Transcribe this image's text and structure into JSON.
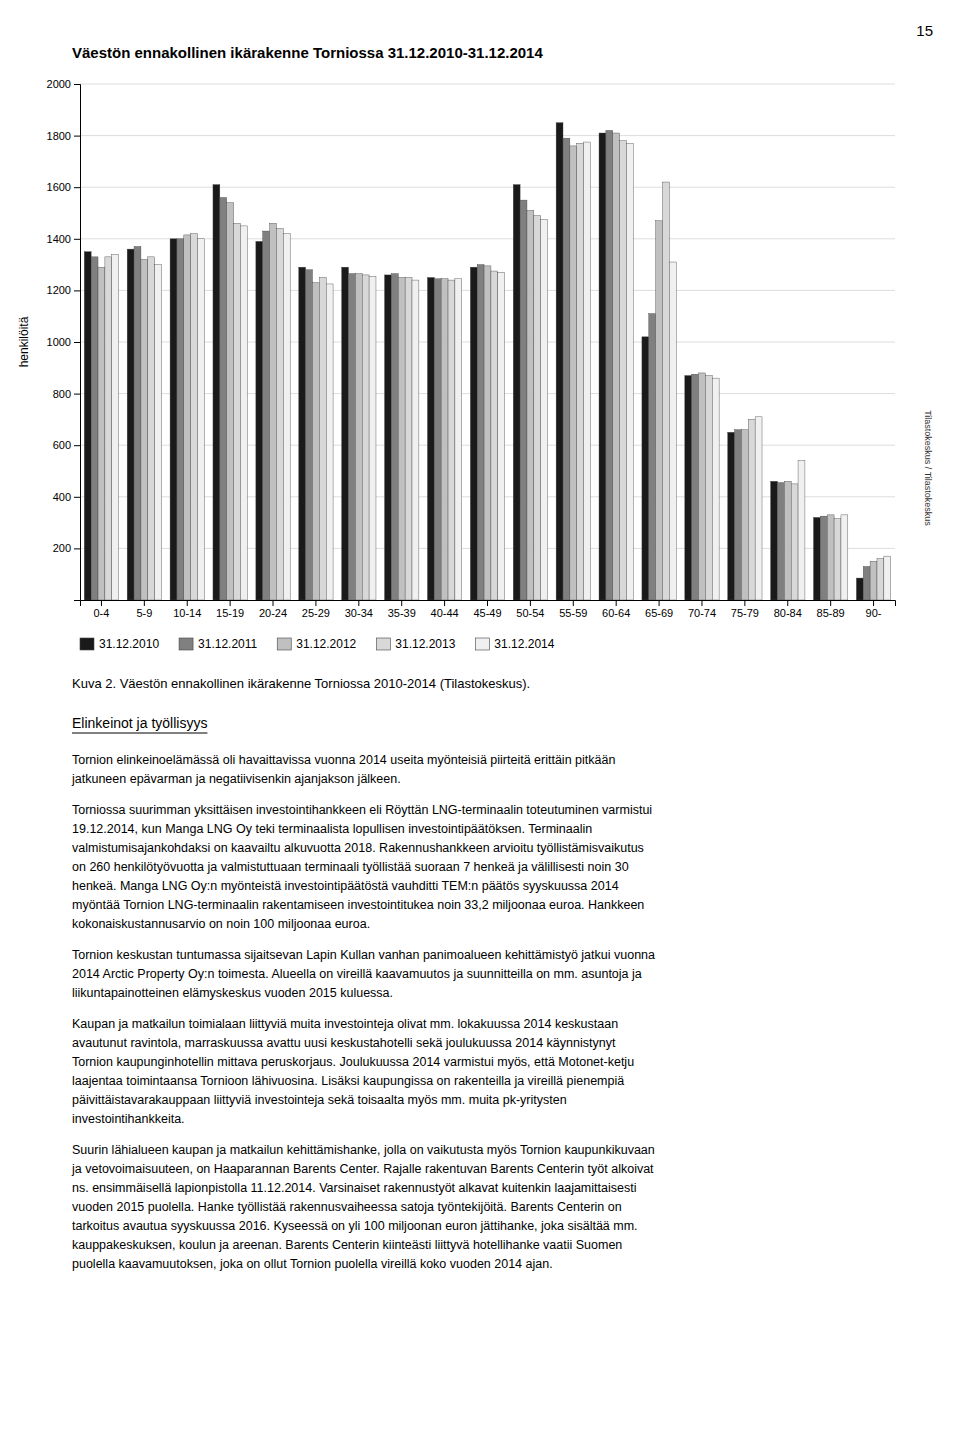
{
  "chart_data": {
    "type": "bar",
    "title": "Väestön ennakollinen ikärakenne Torniossa 31.12.2010-31.12.2014",
    "ylabel": "henkilöitä",
    "categories": [
      "0-4",
      "5-9",
      "10-14",
      "15-19",
      "20-24",
      "25-29",
      "30-34",
      "35-39",
      "40-44",
      "45-49",
      "50-54",
      "55-59",
      "60-64",
      "65-69",
      "70-74",
      "75-79",
      "80-84",
      "85-89",
      "90-"
    ],
    "series": [
      {
        "name": "31.12.2010",
        "color": "#1a1a1a",
        "values": [
          1350,
          1360,
          1400,
          1610,
          1390,
          1290,
          1290,
          1260,
          1250,
          1290,
          1610,
          1850,
          1810,
          1020,
          870,
          650,
          460,
          320,
          85
        ]
      },
      {
        "name": "31.12.2011",
        "color": "#808080",
        "values": [
          1330,
          1370,
          1400,
          1560,
          1430,
          1280,
          1265,
          1265,
          1245,
          1300,
          1550,
          1790,
          1820,
          1110,
          875,
          660,
          455,
          325,
          130
        ]
      },
      {
        "name": "31.12.2012",
        "color": "#c0c0c0",
        "values": [
          1290,
          1320,
          1415,
          1540,
          1460,
          1230,
          1265,
          1250,
          1245,
          1295,
          1510,
          1760,
          1810,
          1470,
          880,
          660,
          460,
          330,
          150
        ]
      },
      {
        "name": "31.12.2013",
        "color": "#d8d8d8",
        "values": [
          1330,
          1330,
          1420,
          1460,
          1440,
          1250,
          1260,
          1250,
          1240,
          1275,
          1490,
          1770,
          1780,
          1620,
          870,
          700,
          450,
          315,
          160
        ]
      },
      {
        "name": "31.12.2014",
        "color": "#f0f0f0",
        "values": [
          1340,
          1300,
          1400,
          1450,
          1420,
          1225,
          1255,
          1240,
          1245,
          1270,
          1475,
          1775,
          1770,
          1310,
          860,
          710,
          540,
          330,
          170
        ]
      }
    ],
    "ylim": [
      0,
      2000
    ],
    "yticks": [
      200,
      400,
      600,
      800,
      1000,
      1200,
      1400,
      1600,
      1800,
      2000
    ],
    "grid": true,
    "legend": "bottom"
  },
  "page_number": "15",
  "watermark": "Tilastokeskus / Tilastokeskus",
  "caption": "Kuva 2. Väestön ennakollinen ikärakenne Torniossa 2010-2014 (Tilastokeskus).",
  "section_heading": "Elinkeinot ja työllisyys",
  "paragraphs": [
    [
      "Tornion elinkeinoelämässä oli havaittavissa vuonna 2014 useita myönteisiä piirteitä erittäin pitkään",
      "jatkuneen epävarman ja negatiivisenkin ajanjakson jälkeen."
    ],
    [
      "Torniossa suurimman yksittäisen investointihankkeen eli Röyttän LNG-terminaalin toteutuminen varmistui",
      "19.12.2014, kun Manga LNG Oy teki terminaalista lopullisen investointipäätöksen. Terminaalin",
      "valmistumisajankohdaksi on kaavailtu alkuvuotta 2018. Rakennushankkeen arvioitu työllistämisvaikutus",
      "on 260 henkilötyövuotta ja valmistuttuaan terminaali työllistää suoraan 7 henkeä ja välillisesti noin 30",
      "henkeä. Manga LNG Oy:n myönteistä investointipäätöstä vauhditti TEM:n päätös syyskuussa 2014",
      "myöntää Tornion LNG-terminaalin rakentamiseen investointitukea noin 33,2 miljoonaa euroa. Hankkeen",
      "kokonaiskustannusarvio on noin 100 miljoonaa euroa."
    ],
    [
      "Tornion keskustan tuntumassa sijaitsevan Lapin Kullan vanhan panimoalueen kehittämistyö jatkui vuonna",
      "2014 Arctic Property Oy:n toimesta. Alueella on vireillä kaavamuutos ja suunnitteilla on mm. asuntoja ja",
      "liikuntapainotteinen elämyskeskus vuoden 2015 kuluessa."
    ],
    [
      "Kaupan ja matkailun toimialaan liittyviä muita investointeja olivat mm. lokakuussa 2014 keskustaan",
      "avautunut ravintola, marraskuussa avattu uusi keskustahotelli sekä joulukuussa 2014 käynnistynyt",
      "Tornion kaupunginhotellin mittava peruskorjaus. Joulukuussa 2014 varmistui myös, että Motonet-ketju",
      "laajentaa toimintaansa Tornioon lähivuosina. Lisäksi kaupungissa on rakenteilla ja vireillä pienempiä",
      "päivittäistavarakauppaan liittyviä investointeja sekä toisaalta myös mm. muita pk-yritysten",
      "investointihankkeita."
    ],
    [
      "Suurin lähialueen kaupan ja matkailun kehittämishanke, jolla on vaikutusta myös Tornion kaupunkikuvaan",
      "ja vetovoimaisuuteen, on Haaparannan Barents Center. Rajalle rakentuvan Barents Centerin työt alkoivat",
      "ns. ensimmäisellä lapionpistolla 11.12.2014. Varsinaiset rakennustyöt alkavat kuitenkin laajamittaisesti",
      "vuoden 2015 puolella. Hanke työllistää rakennusvaiheessa satoja työntekijöitä. Barents Centerin on",
      "tarkoitus avautua syyskuussa 2016. Kyseessä on yli 100 miljoonan euron jättihanke, joka sisältää mm.",
      "kauppakeskuksen, koulun ja areenan. Barents Centerin kiinteästi liittyvä hotellihanke vaatii Suomen",
      "puolella kaavamuutoksen, joka on ollut Tornion puolella vireillä koko vuoden 2014 ajan."
    ]
  ]
}
